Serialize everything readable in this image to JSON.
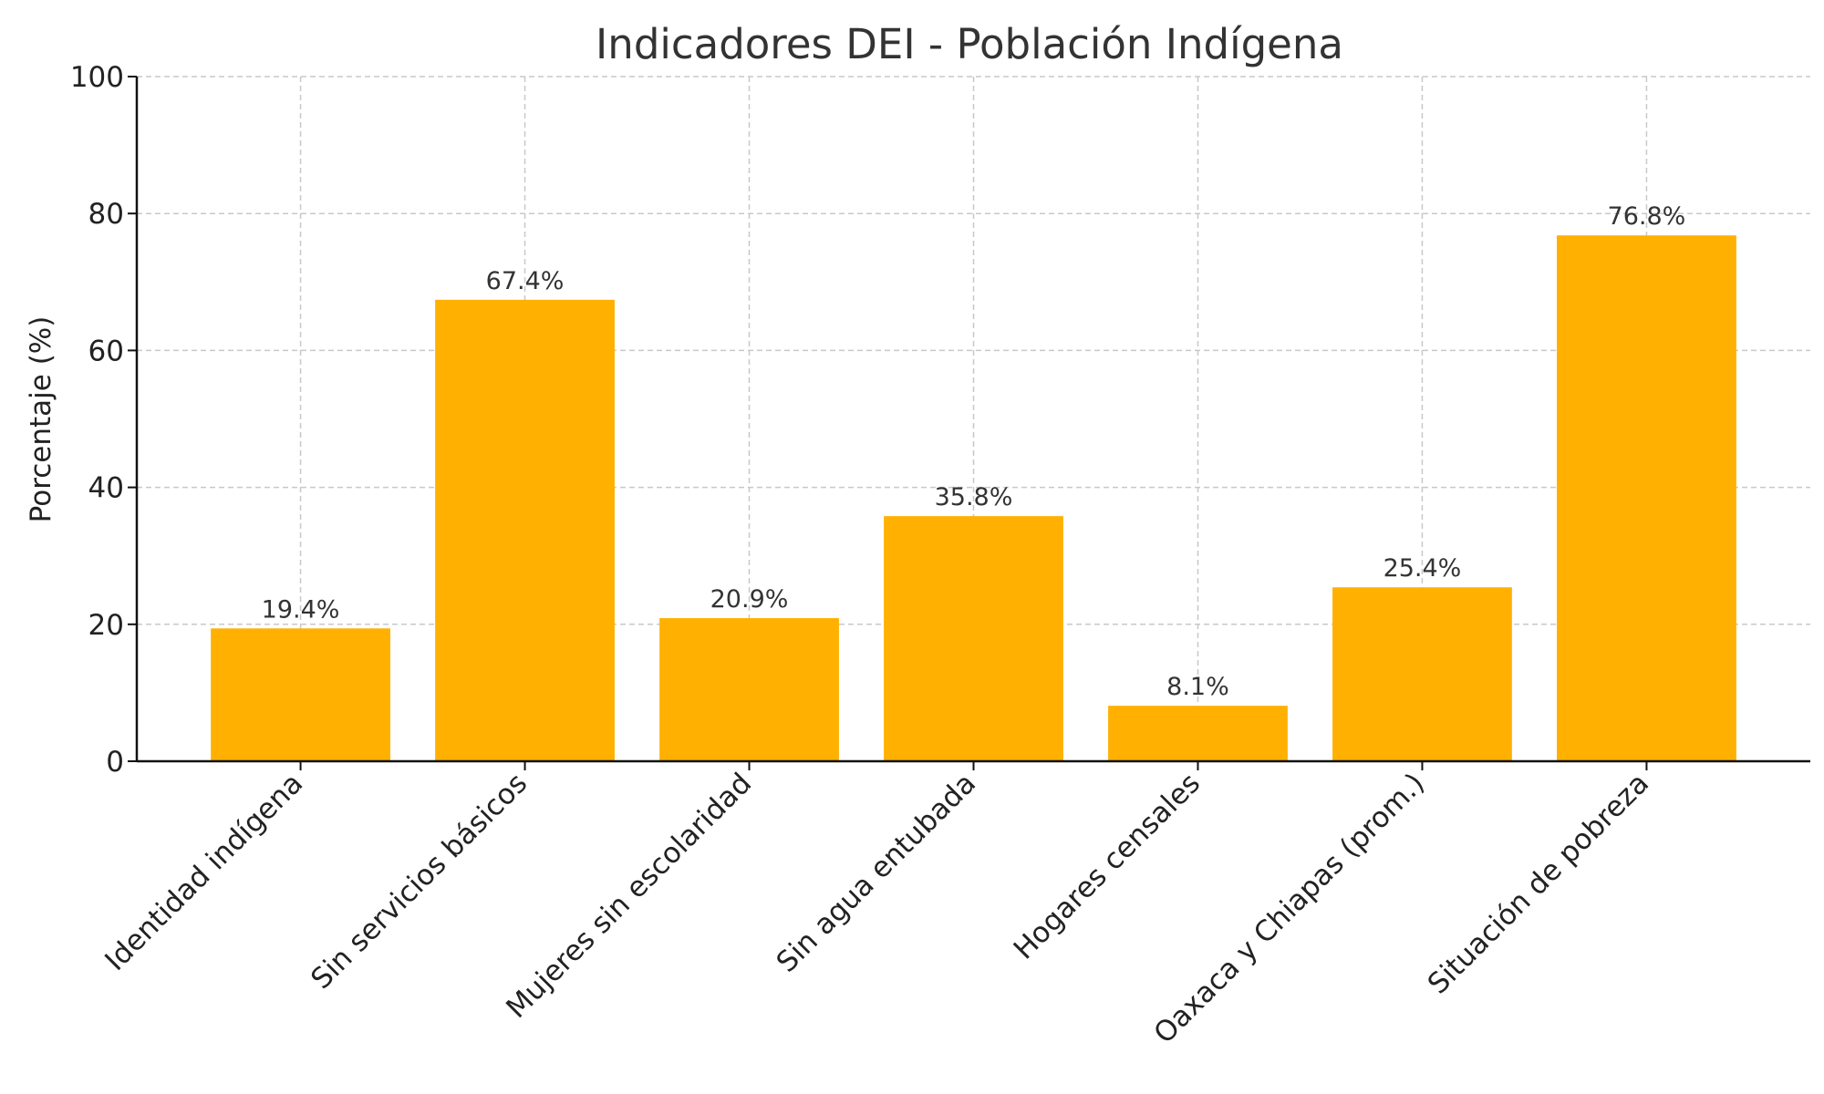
{
  "chart_data": {
    "type": "bar",
    "title": "Indicadores DEI - Población Indígena",
    "xlabel": "",
    "ylabel": "Porcentaje (%)",
    "ylim": [
      0,
      100
    ],
    "yticks": [
      "0",
      "20",
      "40",
      "60",
      "80",
      "100"
    ],
    "grid": true,
    "bar_color": "#FFB000",
    "categories": [
      "Identidad indígena",
      "Sin servicios básicos",
      "Mujeres sin escolaridad",
      "Sin agua entubada",
      "Hogares censales",
      "Oaxaca y Chiapas (prom.)",
      "Situación de pobreza"
    ],
    "values": [
      19.4,
      67.4,
      20.9,
      35.8,
      8.1,
      25.4,
      76.8
    ],
    "value_labels": [
      "19.4%",
      "67.4%",
      "20.9%",
      "35.8%",
      "8.1%",
      "25.4%",
      "76.8%"
    ]
  }
}
